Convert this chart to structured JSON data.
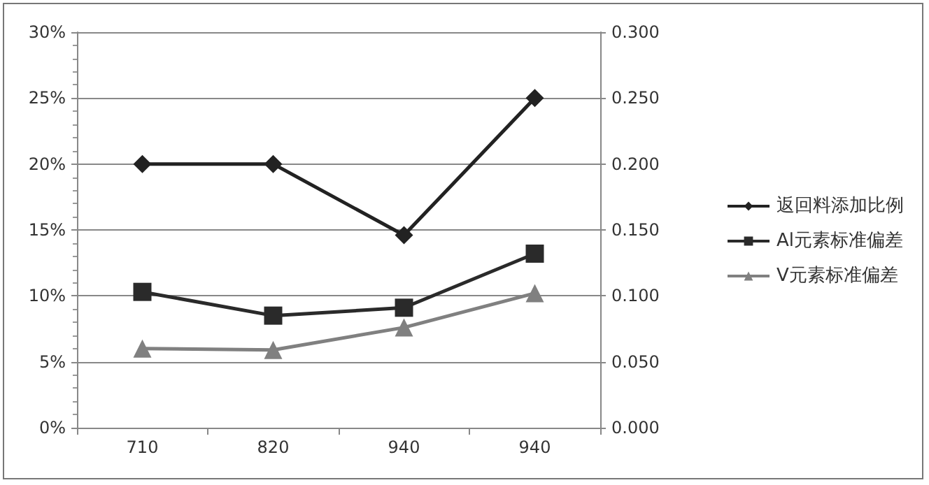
{
  "chart_data": {
    "type": "line",
    "categories": [
      "710",
      "820",
      "940",
      "940"
    ],
    "series": [
      {
        "name": "返回料添加比例",
        "color": "#222222",
        "marker": "diamond",
        "values": [
          20,
          20,
          14.6,
          25
        ]
      },
      {
        "name": "Al元素标准偏差",
        "color": "#2a2a2a",
        "marker": "square",
        "axis": "y2",
        "values": [
          0.103,
          0.085,
          0.091,
          0.132
        ]
      },
      {
        "name": "V元素标准偏差",
        "color": "#808080",
        "marker": "triangle",
        "axis": "y2",
        "values": [
          0.06,
          0.059,
          0.076,
          0.102
        ]
      }
    ],
    "ylim": [
      0,
      30
    ],
    "yticks": [
      {
        "value": 0,
        "label": "0%"
      },
      {
        "value": 5,
        "label": "5%"
      },
      {
        "value": 10,
        "label": "10%"
      },
      {
        "value": 15,
        "label": "15%"
      },
      {
        "value": 20,
        "label": "20%"
      },
      {
        "value": 25,
        "label": "25%"
      },
      {
        "value": 30,
        "label": "30%"
      }
    ],
    "y2lim": [
      0,
      0.3
    ],
    "y2ticks": [
      {
        "value": 0,
        "label": "0.000"
      },
      {
        "value": 0.05,
        "label": "0.050"
      },
      {
        "value": 0.1,
        "label": "0.100"
      },
      {
        "value": 0.15,
        "label": "0.150"
      },
      {
        "value": 0.2,
        "label": "0.200"
      },
      {
        "value": 0.25,
        "label": "0.250"
      },
      {
        "value": 0.3,
        "label": "0.300"
      }
    ],
    "grid": "y",
    "legend": "right",
    "line_style": "solid"
  }
}
